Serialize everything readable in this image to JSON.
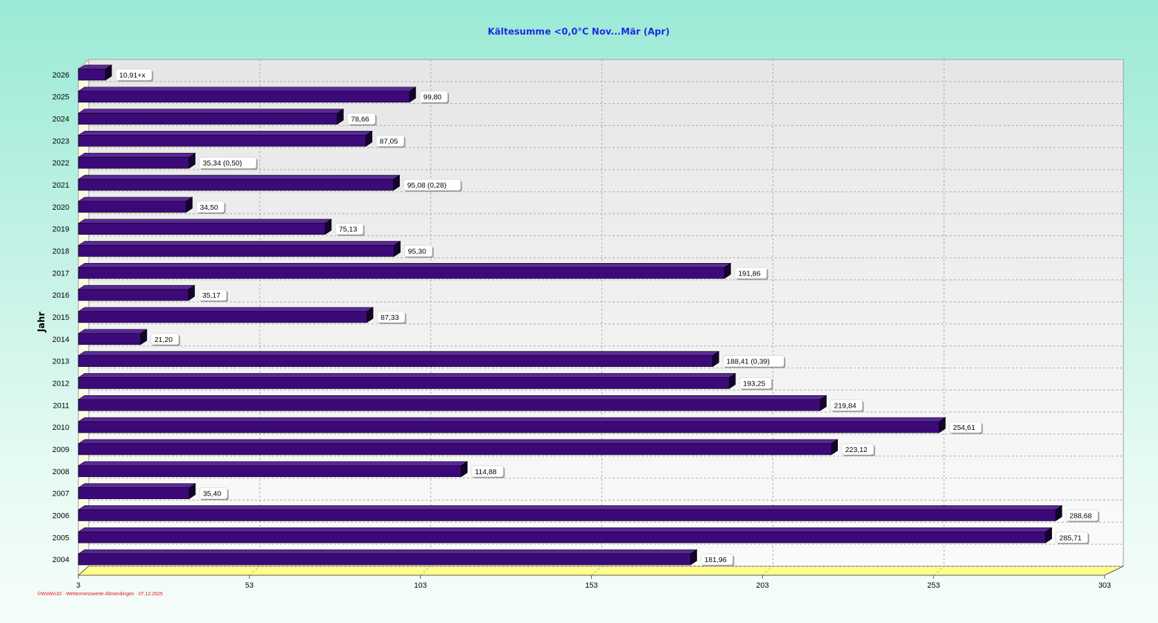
{
  "chart_data": {
    "type": "bar",
    "orientation": "horizontal",
    "title": "Kältesumme  <0,0°C  Nov...Mär (Apr)",
    "ylabel": "Jahr",
    "xlim": [
      3,
      303
    ],
    "x_ticks": [
      "3",
      "53",
      "103",
      "153",
      "203",
      "253",
      "303"
    ],
    "grid": true,
    "categories": [
      "2026",
      "2025",
      "2024",
      "2023",
      "2022",
      "2021",
      "2020",
      "2019",
      "2018",
      "2017",
      "2016",
      "2015",
      "2014",
      "2013",
      "2012",
      "2011",
      "2010",
      "2009",
      "2008",
      "2007",
      "2006",
      "2005",
      "2004"
    ],
    "values": [
      10.91,
      99.8,
      78.66,
      87.05,
      35.34,
      95.08,
      34.5,
      75.13,
      95.3,
      191.86,
      35.17,
      87.33,
      21.2,
      188.41,
      193.25,
      219.84,
      254.61,
      223.12,
      114.88,
      35.4,
      288.68,
      285.71,
      181.96
    ],
    "data_labels": [
      "10,91+x",
      "99,80",
      "78,66",
      "87,05",
      "35,34 (0,50)",
      "95,08 (0,28)",
      "34,50",
      "75,13",
      "95,30",
      "191,86",
      "35,17",
      "87,33",
      "21,20",
      "188,41 (0,39)",
      "193,25",
      "219,84",
      "254,61",
      "223,12",
      "114,88",
      "35,40",
      "288,68",
      "285,71",
      "181,96"
    ],
    "colors": {
      "bar": "#3c0a78",
      "bar_top": "#5a2898",
      "bar_side": "#14032c",
      "floor": "#ffff8a",
      "wall": "#f0f0f0"
    }
  },
  "footer": {
    "credit": "©WsWin32  ·  Wettermesswerte Allmendingen  ·   07.12.2025"
  }
}
